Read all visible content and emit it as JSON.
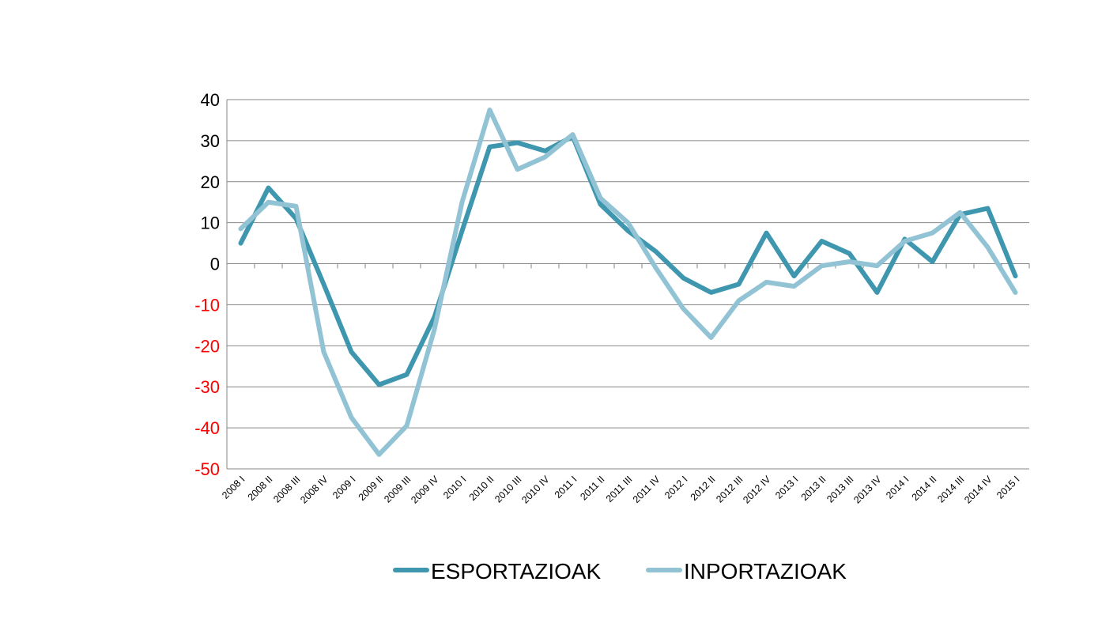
{
  "chart_data": {
    "type": "line",
    "title": "",
    "xlabel": "",
    "ylabel": "",
    "ylim": [
      -50,
      40
    ],
    "yticks": [
      40,
      30,
      20,
      10,
      0,
      -10,
      -20,
      -30,
      -40,
      -50
    ],
    "grid": true,
    "legend_position": "bottom",
    "categories": [
      "2008 I",
      "2008 II",
      "2008 III",
      "2008 IV",
      "2009 I",
      "2009 II",
      "2009 III",
      "2009 IV",
      "2010 I",
      "2010 II",
      "2010 III",
      "2010 IV",
      "2011 I",
      "2011 II",
      "2011 III",
      "2011 IV",
      "2012 I",
      "2012 II",
      "2012 III",
      "2012 IV",
      "2013 I",
      "2013 II",
      "2013 III",
      "2013 IV",
      "2014 I",
      "2014 II",
      "2014 III",
      "2014 IV",
      "2015 I"
    ],
    "series": [
      {
        "name": "ESPORTAZIOAK",
        "color": "#3e97ae",
        "values": [
          5,
          18.5,
          11,
          -5,
          -21.5,
          -29.5,
          -27,
          -13,
          8,
          28.5,
          29.5,
          27.5,
          31,
          14.5,
          8,
          3,
          -3.5,
          -7,
          -5,
          7.5,
          -3,
          5.5,
          2.5,
          -7,
          6,
          0.5,
          12,
          13.5,
          -3
        ]
      },
      {
        "name": "INPORTAZIOAK",
        "color": "#91c3d5",
        "values": [
          8.5,
          15,
          14,
          -21.5,
          -37.5,
          -46.5,
          -39.5,
          -16,
          15,
          37.5,
          23,
          26,
          31.5,
          16,
          10,
          -1,
          -11,
          -18,
          -9,
          -4.5,
          -5.5,
          -0.5,
          0.5,
          -0.5,
          5.5,
          7.5,
          12.5,
          4,
          -7
        ]
      }
    ],
    "negative_label_color": "#ff0000",
    "positive_label_color": "#000000"
  }
}
